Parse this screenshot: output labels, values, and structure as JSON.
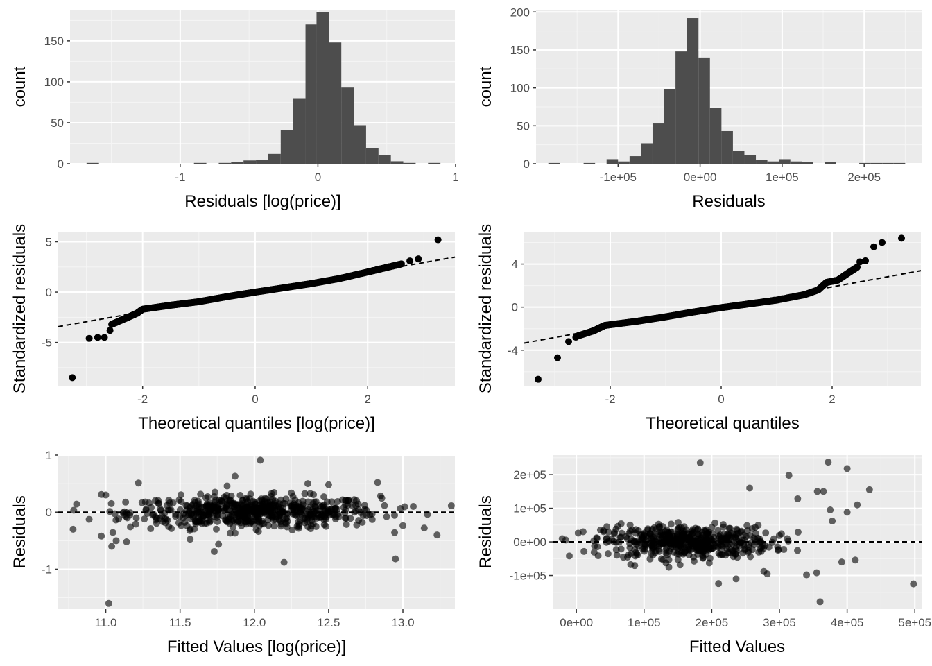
{
  "colors": {
    "panel_bg": "#ebebeb",
    "grid_major": "#ffffff",
    "grid_minor": "#f5f5f5",
    "bar_fill": "#4d4d4d",
    "point_fill": "#000000",
    "tick_text": "#4d4d4d",
    "title_text": "#000000"
  },
  "chart_data": [
    {
      "type": "histogram",
      "xlabel": "Residuals [log(price)]",
      "ylabel": "count",
      "xlim": [
        -1.8,
        1.0
      ],
      "ylim": [
        0,
        188
      ],
      "grid": true,
      "xticks": [
        {
          "value": -1,
          "label": "-1"
        },
        {
          "value": 0,
          "label": "0"
        },
        {
          "value": 1,
          "label": "1"
        }
      ],
      "yticks": [
        {
          "value": 0,
          "label": "0"
        },
        {
          "value": 50,
          "label": "50"
        },
        {
          "value": 100,
          "label": "100"
        },
        {
          "value": 150,
          "label": "150"
        }
      ],
      "bins": [
        {
          "x0": -1.68,
          "x1": -1.59,
          "count": 1
        },
        {
          "x0": -0.9,
          "x1": -0.81,
          "count": 1
        },
        {
          "x0": -0.72,
          "x1": -0.63,
          "count": 1
        },
        {
          "x0": -0.63,
          "x1": -0.54,
          "count": 2
        },
        {
          "x0": -0.54,
          "x1": -0.45,
          "count": 4
        },
        {
          "x0": -0.45,
          "x1": -0.36,
          "count": 5
        },
        {
          "x0": -0.36,
          "x1": -0.27,
          "count": 12
        },
        {
          "x0": -0.27,
          "x1": -0.18,
          "count": 41
        },
        {
          "x0": -0.18,
          "x1": -0.09,
          "count": 80
        },
        {
          "x0": -0.09,
          "x1": -0.01,
          "count": 170
        },
        {
          "x0": -0.01,
          "x1": 0.08,
          "count": 185
        },
        {
          "x0": 0.08,
          "x1": 0.17,
          "count": 148
        },
        {
          "x0": 0.17,
          "x1": 0.26,
          "count": 93
        },
        {
          "x0": 0.26,
          "x1": 0.35,
          "count": 47
        },
        {
          "x0": 0.35,
          "x1": 0.44,
          "count": 19
        },
        {
          "x0": 0.44,
          "x1": 0.53,
          "count": 11
        },
        {
          "x0": 0.53,
          "x1": 0.62,
          "count": 3
        },
        {
          "x0": 0.62,
          "x1": 0.71,
          "count": 1
        },
        {
          "x0": 0.8,
          "x1": 0.89,
          "count": 1
        }
      ]
    },
    {
      "type": "histogram",
      "xlabel": "Residuals",
      "ylabel": "count",
      "xlim": [
        -200000,
        270000
      ],
      "ylim": [
        0,
        203
      ],
      "grid": true,
      "xticks": [
        {
          "value": -100000,
          "label": "-1e+05"
        },
        {
          "value": 0,
          "label": "0e+00"
        },
        {
          "value": 100000,
          "label": "1e+05"
        },
        {
          "value": 200000,
          "label": "2e+05"
        }
      ],
      "yticks": [
        {
          "value": 0,
          "label": "0"
        },
        {
          "value": 50,
          "label": "50"
        },
        {
          "value": 100,
          "label": "100"
        },
        {
          "value": 150,
          "label": "150"
        },
        {
          "value": 200,
          "label": "200"
        }
      ],
      "bins": [
        {
          "x0": -185000,
          "x1": -171000,
          "count": 1
        },
        {
          "x0": -142000,
          "x1": -128000,
          "count": 1
        },
        {
          "x0": -114000,
          "x1": -100000,
          "count": 6
        },
        {
          "x0": -100000,
          "x1": -86000,
          "count": 3
        },
        {
          "x0": -86000,
          "x1": -72000,
          "count": 10
        },
        {
          "x0": -72000,
          "x1": -58000,
          "count": 27
        },
        {
          "x0": -58000,
          "x1": -44000,
          "count": 53
        },
        {
          "x0": -44000,
          "x1": -30000,
          "count": 98
        },
        {
          "x0": -30000,
          "x1": -16000,
          "count": 148
        },
        {
          "x0": -16000,
          "x1": -2000,
          "count": 192
        },
        {
          "x0": -2000,
          "x1": 12000,
          "count": 140
        },
        {
          "x0": 12000,
          "x1": 26000,
          "count": 74
        },
        {
          "x0": 26000,
          "x1": 40000,
          "count": 43
        },
        {
          "x0": 40000,
          "x1": 54000,
          "count": 17
        },
        {
          "x0": 54000,
          "x1": 68000,
          "count": 11
        },
        {
          "x0": 68000,
          "x1": 82000,
          "count": 5
        },
        {
          "x0": 82000,
          "x1": 96000,
          "count": 3
        },
        {
          "x0": 96000,
          "x1": 110000,
          "count": 6
        },
        {
          "x0": 110000,
          "x1": 124000,
          "count": 3
        },
        {
          "x0": 124000,
          "x1": 138000,
          "count": 2
        },
        {
          "x0": 152000,
          "x1": 166000,
          "count": 2
        },
        {
          "x0": 194000,
          "x1": 208000,
          "count": 1
        },
        {
          "x0": 208000,
          "x1": 222000,
          "count": 1
        },
        {
          "x0": 222000,
          "x1": 236000,
          "count": 1
        },
        {
          "x0": 236000,
          "x1": 250000,
          "count": 1
        }
      ]
    },
    {
      "type": "scatter",
      "xlabel": "Theoretical quantiles  [log(price)]",
      "ylabel": "Standardized residuals",
      "xlim": [
        -3.5,
        3.55
      ],
      "ylim": [
        -9.3,
        6.0
      ],
      "grid": true,
      "xticks": [
        {
          "value": -2,
          "label": "-2"
        },
        {
          "value": 0,
          "label": "0"
        },
        {
          "value": 2,
          "label": "2"
        }
      ],
      "yticks": [
        {
          "value": -5,
          "label": "-5"
        },
        {
          "value": 0,
          "label": "0"
        },
        {
          "value": 5,
          "label": "5"
        }
      ],
      "reference_line": {
        "intercept": 0,
        "slope": 0.98,
        "style": "dashed"
      },
      "curve_points": [
        [
          -2.55,
          -3.2
        ],
        [
          -2.3,
          -2.6
        ],
        [
          -2.1,
          -2.1
        ],
        [
          -2.0,
          -1.7
        ],
        [
          -1.5,
          -1.3
        ],
        [
          -1.0,
          -0.95
        ],
        [
          -0.5,
          -0.45
        ],
        [
          0,
          0
        ],
        [
          0.5,
          0.42
        ],
        [
          1.0,
          0.85
        ],
        [
          1.5,
          1.35
        ],
        [
          2.0,
          2.0
        ],
        [
          2.3,
          2.4
        ],
        [
          2.6,
          2.8
        ]
      ],
      "outliers": [
        [
          -3.25,
          -8.5
        ],
        [
          -2.95,
          -4.6
        ],
        [
          -2.8,
          -4.5
        ],
        [
          -2.68,
          -4.5
        ],
        [
          -2.58,
          -3.8
        ],
        [
          2.75,
          3.1
        ],
        [
          2.9,
          3.3
        ],
        [
          3.25,
          5.2
        ]
      ]
    },
    {
      "type": "scatter",
      "xlabel": "Theoretical quantiles",
      "ylabel": "Standardized residuals",
      "xlim": [
        -3.55,
        3.6
      ],
      "ylim": [
        -7.3,
        7.0
      ],
      "grid": true,
      "xticks": [
        {
          "value": -2,
          "label": "-2"
        },
        {
          "value": 0,
          "label": "0"
        },
        {
          "value": 2,
          "label": "2"
        }
      ],
      "yticks": [
        {
          "value": -4,
          "label": "-4"
        },
        {
          "value": 0,
          "label": "0"
        },
        {
          "value": 4,
          "label": "4"
        }
      ],
      "reference_line": {
        "intercept": 0,
        "slope": 0.94,
        "style": "dashed"
      },
      "curve_points": [
        [
          -2.6,
          -2.7
        ],
        [
          -2.3,
          -2.2
        ],
        [
          -2.1,
          -1.7
        ],
        [
          -1.5,
          -1.3
        ],
        [
          -1.0,
          -0.9
        ],
        [
          -0.5,
          -0.45
        ],
        [
          0,
          -0.05
        ],
        [
          0.5,
          0.3
        ],
        [
          1.0,
          0.65
        ],
        [
          1.5,
          1.15
        ],
        [
          1.75,
          1.6
        ],
        [
          1.9,
          2.3
        ],
        [
          2.1,
          2.5
        ],
        [
          2.3,
          3.2
        ],
        [
          2.45,
          3.7
        ]
      ],
      "outliers": [
        [
          -3.3,
          -6.7
        ],
        [
          -2.95,
          -4.7
        ],
        [
          -2.75,
          -3.2
        ],
        [
          -2.62,
          -2.8
        ],
        [
          2.5,
          4.2
        ],
        [
          2.6,
          4.3
        ],
        [
          2.75,
          5.6
        ],
        [
          2.9,
          6.0
        ],
        [
          3.25,
          6.4
        ]
      ]
    },
    {
      "type": "scatter",
      "xlabel": "Fitted Values  [log(price)]",
      "ylabel": "Residuals",
      "xlim": [
        10.68,
        13.35
      ],
      "ylim": [
        -1.7,
        1.0
      ],
      "grid": true,
      "xticks": [
        {
          "value": 11.0,
          "label": "11.0"
        },
        {
          "value": 11.5,
          "label": "11.5"
        },
        {
          "value": 12.0,
          "label": "12.0"
        },
        {
          "value": 12.5,
          "label": "12.5"
        },
        {
          "value": 13.0,
          "label": "13.0"
        }
      ],
      "yticks": [
        {
          "value": -1,
          "label": "-1"
        },
        {
          "value": 0,
          "label": "0"
        },
        {
          "value": 1,
          "label": "1"
        }
      ],
      "reference_line": {
        "intercept": 0,
        "slope": 0,
        "style": "dashed"
      },
      "cloud": {
        "x_center": 12.0,
        "x_spread": 0.42,
        "y_spread": 0.14,
        "n": 620,
        "alpha": 0.6
      },
      "outliers": [
        [
          10.78,
          -0.3
        ],
        [
          11.02,
          -1.6
        ],
        [
          11.04,
          -0.6
        ],
        [
          11.0,
          0.3
        ],
        [
          10.97,
          0.31
        ],
        [
          10.97,
          -0.42
        ],
        [
          11.07,
          -0.5
        ],
        [
          11.14,
          -0.52
        ],
        [
          11.22,
          0.51
        ],
        [
          11.26,
          -0.12
        ],
        [
          12.04,
          0.91
        ],
        [
          11.87,
          0.63
        ],
        [
          11.73,
          -0.69
        ],
        [
          12.2,
          -0.88
        ],
        [
          12.95,
          -0.82
        ],
        [
          13.23,
          -0.4
        ],
        [
          13.07,
          0.1
        ],
        [
          12.83,
          0.52
        ],
        [
          12.5,
          0.48
        ],
        [
          12.36,
          0.5
        ]
      ]
    },
    {
      "type": "scatter",
      "xlabel": "Fitted Values",
      "ylabel": "Residuals",
      "xlim": [
        -35000,
        510000
      ],
      "ylim": [
        -200000,
        258000
      ],
      "grid": true,
      "xticks": [
        {
          "value": 0,
          "label": "0e+00"
        },
        {
          "value": 100000,
          "label": "1e+05"
        },
        {
          "value": 200000,
          "label": "2e+05"
        },
        {
          "value": 300000,
          "label": "3e+05"
        },
        {
          "value": 400000,
          "label": "4e+05"
        },
        {
          "value": 500000,
          "label": "5e+05"
        }
      ],
      "yticks": [
        {
          "value": -100000,
          "label": "-1e+05"
        },
        {
          "value": 0,
          "label": "0e+00"
        },
        {
          "value": 100000,
          "label": "1e+05"
        },
        {
          "value": 200000,
          "label": "2e+05"
        }
      ],
      "reference_line": {
        "intercept": 0,
        "slope": 0,
        "style": "dashed"
      },
      "cloud": {
        "x_center": 165000,
        "x_spread": 62000,
        "y_spread": 24000,
        "n": 520,
        "alpha": 0.6
      },
      "outliers": [
        [
          183000,
          235000
        ],
        [
          372000,
          237000
        ],
        [
          400000,
          218000
        ],
        [
          314000,
          198000
        ],
        [
          256000,
          160000
        ],
        [
          356000,
          150000
        ],
        [
          433000,
          155000
        ],
        [
          327000,
          128000
        ],
        [
          365000,
          150000
        ],
        [
          415000,
          110000
        ],
        [
          375000,
          95000
        ],
        [
          400000,
          88000
        ],
        [
          378000,
          62000
        ],
        [
          498000,
          -125000
        ],
        [
          360000,
          -178000
        ],
        [
          210000,
          -124000
        ],
        [
          236000,
          -110000
        ],
        [
          282000,
          -95000
        ],
        [
          277000,
          -88000
        ],
        [
          340000,
          -98000
        ],
        [
          355000,
          -92000
        ],
        [
          392000,
          -60000
        ],
        [
          412000,
          -54000
        ],
        [
          10000,
          30000
        ],
        [
          30000,
          12000
        ],
        [
          45000,
          45000
        ]
      ]
    }
  ]
}
